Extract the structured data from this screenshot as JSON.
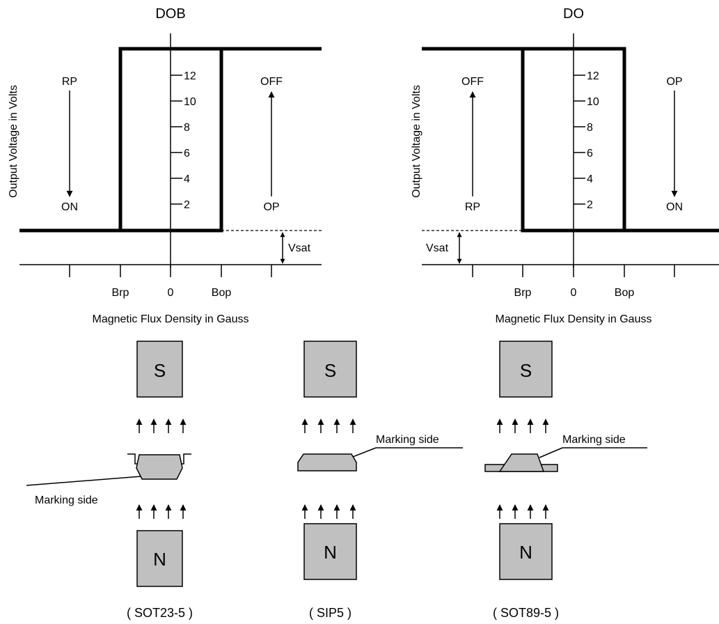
{
  "colors": {
    "magnet_fill": "#c0c0c0",
    "line": "#000000"
  },
  "graphs": {
    "left": {
      "title": "DOB",
      "ylabel": "Output Voltage in Volts",
      "xlabel": "Magnetic Flux Density in Gauss",
      "y_ticks": [
        "12",
        "10",
        "8",
        "6",
        "4",
        "2"
      ],
      "x_labels": {
        "brp": "Brp",
        "zero": "0",
        "bop": "Bop"
      },
      "left_arrow": {
        "top": "RP",
        "bottom": "ON"
      },
      "right_arrow": {
        "top": "OFF",
        "bottom": "OP"
      },
      "vsat": "Vsat"
    },
    "right": {
      "title": "DO",
      "ylabel": "Output Voltage in Volts",
      "xlabel": "Magnetic Flux Density in Gauss",
      "y_ticks": [
        "12",
        "10",
        "8",
        "6",
        "4",
        "2"
      ],
      "x_labels": {
        "brp": "Brp",
        "zero": "0",
        "bop": "Bop"
      },
      "left_arrow": {
        "top": "OFF",
        "bottom": "RP"
      },
      "right_arrow": {
        "top": "OP",
        "bottom": "ON"
      },
      "vsat": "Vsat"
    }
  },
  "packages": [
    {
      "south": "S",
      "north": "N",
      "marking": "Marking side",
      "name": "( SOT23-5 )"
    },
    {
      "south": "S",
      "north": "N",
      "marking": "Marking side",
      "name": "( SIP5 )"
    },
    {
      "south": "S",
      "north": "N",
      "marking": "Marking side",
      "name": "( SOT89-5 )"
    }
  ]
}
